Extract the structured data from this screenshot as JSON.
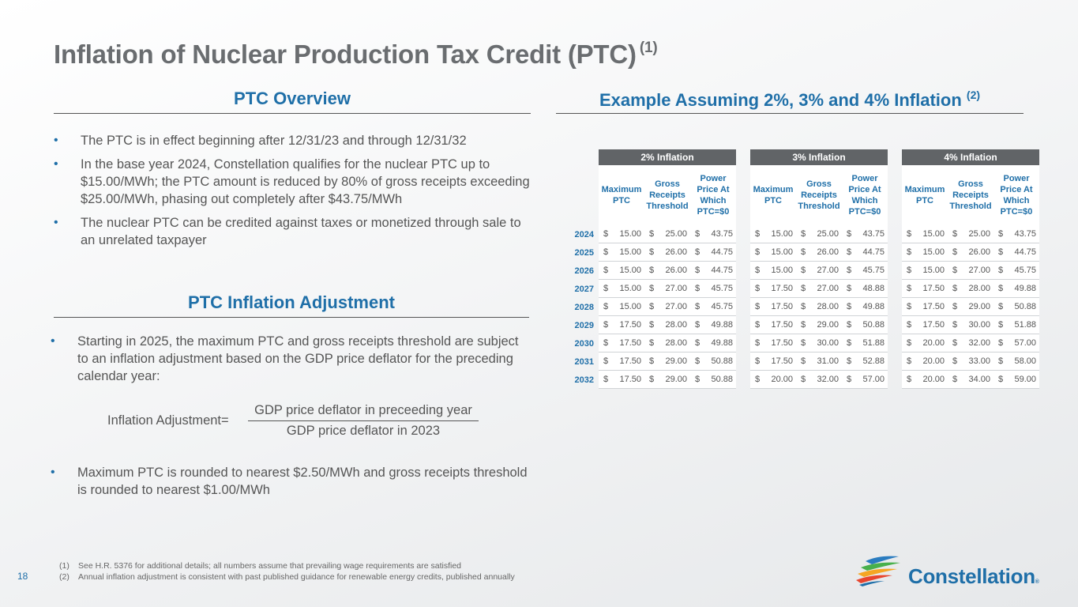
{
  "title": {
    "text": "Inflation of Nuclear Production Tax Credit (PTC)",
    "sup": "(1)"
  },
  "overview": {
    "heading": "PTC Overview",
    "bullets": [
      "The PTC is in effect beginning after 12/31/23 and through 12/31/32",
      "In the base year 2024, Constellation qualifies for the nuclear PTC up to $15.00/MWh; the PTC amount is reduced by 80% of gross receipts exceeding $25.00/MWh, phasing out completely after $43.75/MWh",
      "The nuclear PTC can be credited against taxes or monetized through sale to an unrelated taxpayer"
    ]
  },
  "adjustment": {
    "heading": "PTC Inflation Adjustment",
    "bullets": [
      "Starting in 2025, the maximum PTC and gross receipts threshold are subject to an inflation adjustment based on the GDP price deflator for the preceding calendar year:",
      "Maximum PTC is rounded to nearest $2.50/MWh and gross receipts threshold is rounded to nearest $1.00/MWh"
    ],
    "formula": {
      "lhs": "Inflation Adjustment=",
      "numerator": "GDP price deflator in preceeding year",
      "denominator": "GDP price deflator in 2023"
    }
  },
  "example": {
    "heading": "Example Assuming 2%, 3% and 4% Inflation",
    "sup": "(2)",
    "groups": [
      "2% Inflation",
      "3% Inflation",
      "4% Inflation"
    ],
    "col_labels": [
      "Maximum PTC",
      "Gross Receipts Threshold",
      "Power Price At Which PTC=$0"
    ],
    "currency": "$",
    "rows": [
      {
        "year": "2024",
        "v": [
          "15.00",
          "25.00",
          "43.75",
          "15.00",
          "25.00",
          "43.75",
          "15.00",
          "25.00",
          "43.75"
        ]
      },
      {
        "year": "2025",
        "v": [
          "15.00",
          "26.00",
          "44.75",
          "15.00",
          "26.00",
          "44.75",
          "15.00",
          "26.00",
          "44.75"
        ]
      },
      {
        "year": "2026",
        "v": [
          "15.00",
          "26.00",
          "44.75",
          "15.00",
          "27.00",
          "45.75",
          "15.00",
          "27.00",
          "45.75"
        ]
      },
      {
        "year": "2027",
        "v": [
          "15.00",
          "27.00",
          "45.75",
          "17.50",
          "27.00",
          "48.88",
          "17.50",
          "28.00",
          "49.88"
        ]
      },
      {
        "year": "2028",
        "v": [
          "15.00",
          "27.00",
          "45.75",
          "17.50",
          "28.00",
          "49.88",
          "17.50",
          "29.00",
          "50.88"
        ]
      },
      {
        "year": "2029",
        "v": [
          "17.50",
          "28.00",
          "49.88",
          "17.50",
          "29.00",
          "50.88",
          "17.50",
          "30.00",
          "51.88"
        ]
      },
      {
        "year": "2030",
        "v": [
          "17.50",
          "28.00",
          "49.88",
          "17.50",
          "30.00",
          "51.88",
          "20.00",
          "32.00",
          "57.00"
        ]
      },
      {
        "year": "2031",
        "v": [
          "17.50",
          "29.00",
          "50.88",
          "17.50",
          "31.00",
          "52.88",
          "20.00",
          "33.00",
          "58.00"
        ]
      },
      {
        "year": "2032",
        "v": [
          "17.50",
          "29.00",
          "50.88",
          "20.00",
          "32.00",
          "57.00",
          "20.00",
          "34.00",
          "59.00"
        ]
      }
    ]
  },
  "footnotes": [
    {
      "n": "(1)",
      "text": "See H.R. 5376 for additional details; all numbers assume that prevailing wage requirements are satisfied"
    },
    {
      "n": "(2)",
      "text": "Annual inflation adjustment is consistent with past published guidance for renewable energy credits, published annually"
    }
  ],
  "page_number": "18",
  "logo": {
    "text": "Constellation",
    "mark": "®"
  },
  "colors": {
    "accent": "#1f6fa8",
    "header_bg": "#616467",
    "text": "#555555"
  }
}
